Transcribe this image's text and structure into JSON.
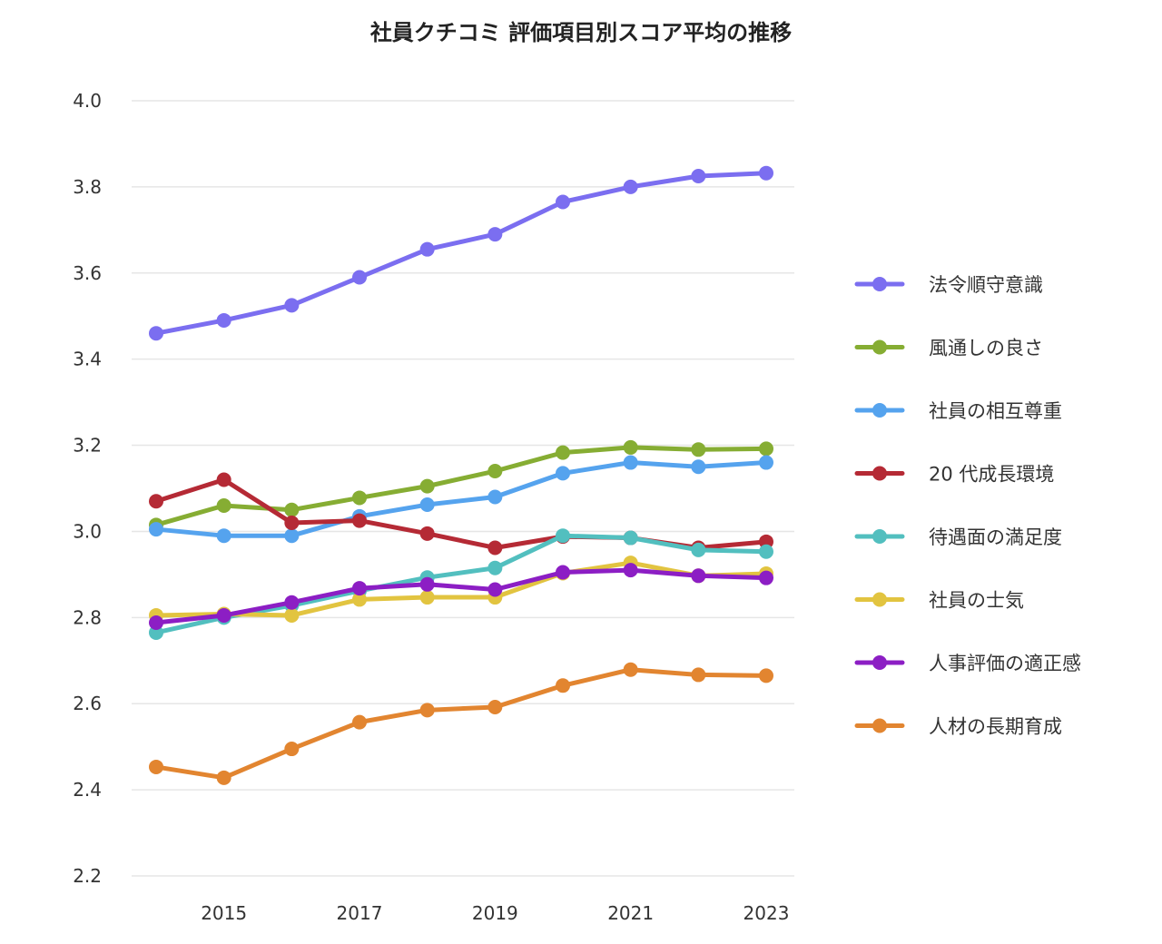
{
  "chart_data": {
    "type": "line",
    "title": "社員クチコミ 評価項目別スコア平均の推移",
    "xlabel": "",
    "ylabel": "",
    "x": [
      2014,
      2015,
      2016,
      2017,
      2018,
      2019,
      2020,
      2021,
      2022,
      2023
    ],
    "xticks": [
      "2015",
      "2017",
      "2019",
      "2021",
      "2023"
    ],
    "ylim": [
      2.2,
      4.0
    ],
    "yticks": [
      "2.2",
      "2.4",
      "2.6",
      "2.8",
      "3.0",
      "3.2",
      "3.4",
      "3.6",
      "3.8",
      "4.0"
    ],
    "grid": "horizontal",
    "legend_position": "right",
    "series": [
      {
        "name": "法令順守意識",
        "color": "#7b6ef0",
        "values": [
          3.46,
          3.49,
          3.525,
          3.59,
          3.655,
          3.69,
          3.765,
          3.8,
          3.825,
          3.832
        ]
      },
      {
        "name": "風通しの良さ",
        "color": "#86ad33",
        "values": [
          3.015,
          3.06,
          3.05,
          3.078,
          3.105,
          3.14,
          3.183,
          3.195,
          3.19,
          3.192
        ]
      },
      {
        "name": "社員の相互尊重",
        "color": "#55a3ee",
        "values": [
          3.005,
          2.99,
          2.99,
          3.035,
          3.062,
          3.08,
          3.135,
          3.16,
          3.15,
          3.16
        ]
      },
      {
        "name": "20 代成長環境",
        "color": "#b52a35",
        "values": [
          3.07,
          3.12,
          3.02,
          3.025,
          2.995,
          2.962,
          2.988,
          2.985,
          2.962,
          2.976
        ]
      },
      {
        "name": "待遇面の満足度",
        "color": "#52bfbf",
        "values": [
          2.765,
          2.8,
          2.828,
          2.862,
          2.893,
          2.915,
          2.99,
          2.985,
          2.957,
          2.953
        ]
      },
      {
        "name": "社員の士気",
        "color": "#e2c440",
        "values": [
          2.805,
          2.808,
          2.805,
          2.842,
          2.847,
          2.847,
          2.903,
          2.927,
          2.897,
          2.902
        ]
      },
      {
        "name": "人事評価の適正感",
        "color": "#8c1ec4",
        "values": [
          2.788,
          2.805,
          2.835,
          2.868,
          2.877,
          2.865,
          2.905,
          2.91,
          2.897,
          2.892
        ]
      },
      {
        "name": "人材の長期育成",
        "color": "#e28530",
        "values": [
          2.453,
          2.428,
          2.495,
          2.557,
          2.585,
          2.592,
          2.642,
          2.679,
          2.667,
          2.665
        ]
      }
    ]
  }
}
